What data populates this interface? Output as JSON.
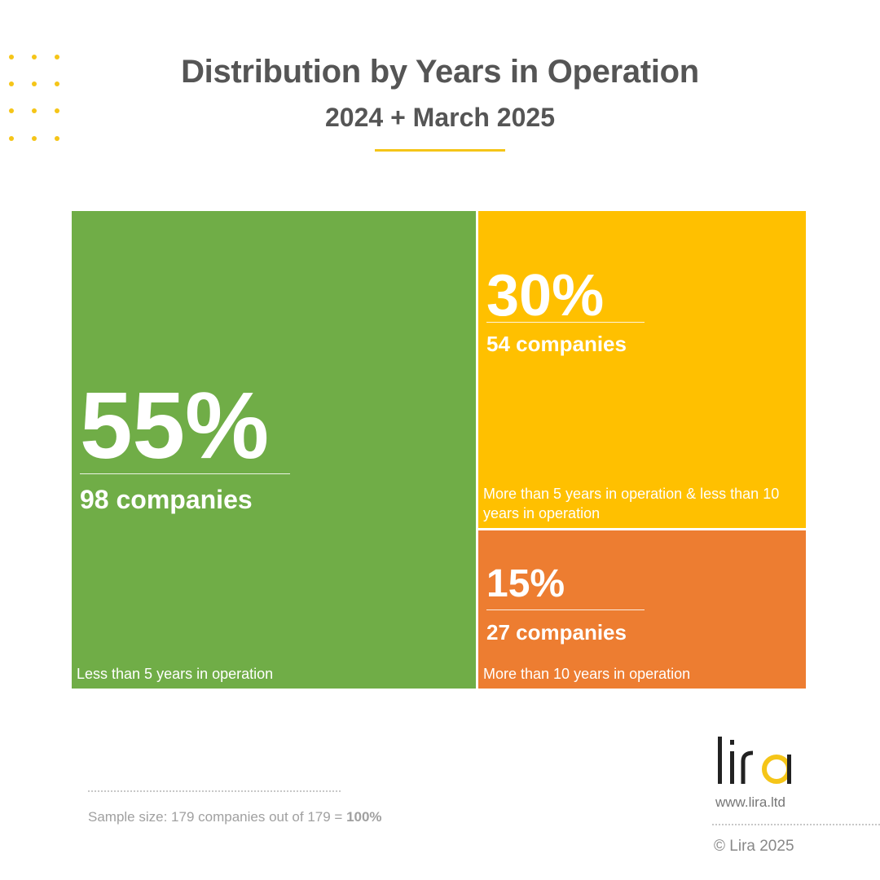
{
  "title": "Distribution by Years in Operation",
  "subtitle": "2024 + March 2025",
  "chart_data": {
    "type": "treemap",
    "items": [
      {
        "percent_label": "55%",
        "value": 55,
        "count_label": "98 companies",
        "count": 98,
        "category": "Less than 5 years in operation",
        "color": "#70ad47"
      },
      {
        "percent_label": "30%",
        "value": 30,
        "count_label": "54 companies",
        "count": 54,
        "category": "More than 5 years in operation & less than 10 years in operation",
        "color": "#ffc000"
      },
      {
        "percent_label": "15%",
        "value": 15,
        "count_label": "27 companies",
        "count": 27,
        "category": "More than 10 years in operation",
        "color": "#ed7d31"
      }
    ]
  },
  "footer": {
    "sample_text": "Sample size: 179 companies out of 179 = ",
    "sample_bold": "100%",
    "logo_text": "lira",
    "url": "www.lira.ltd",
    "copyright": "© Lira 2025"
  },
  "colors": {
    "accent_yellow": "#f5c518",
    "text_gray": "#555555"
  }
}
